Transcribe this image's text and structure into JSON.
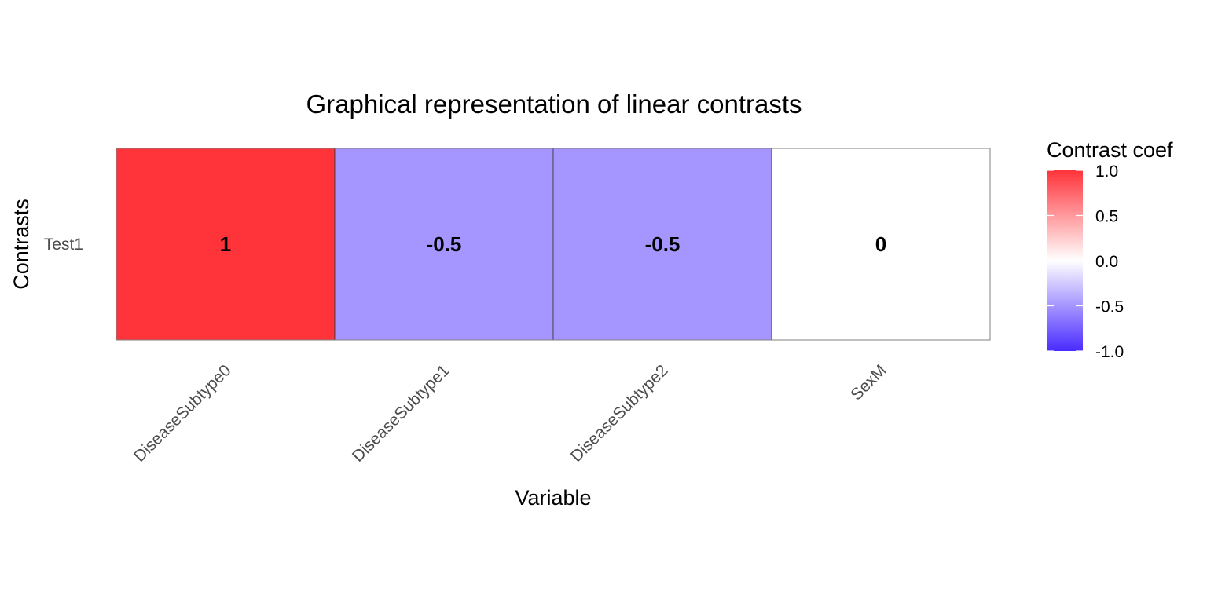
{
  "chart_data": {
    "type": "heatmap",
    "title": "Graphical representation of linear contrasts",
    "xlabel": "Variable",
    "ylabel": "Contrasts",
    "x": [
      "DiseaseSubtype0",
      "DiseaseSubtype1",
      "DiseaseSubtype2",
      "SexM"
    ],
    "y": [
      "Test1"
    ],
    "values": [
      [
        1,
        -0.5,
        -0.5,
        0
      ]
    ],
    "cell_labels": [
      [
        "1",
        "-0.5",
        "-0.5",
        "0"
      ]
    ],
    "legend": {
      "title": "Contrast coef",
      "position": "right",
      "range": [
        -1,
        1
      ],
      "ticks": [
        1.0,
        0.5,
        0.0,
        -0.5,
        -1.0
      ],
      "tick_labels": [
        "1.0",
        "0.5",
        "0.0",
        "-0.5",
        "-1.0"
      ]
    },
    "colors": {
      "high": "#ff333a",
      "mid": "#ffffff",
      "low": "#4a2bff"
    },
    "grid": false
  }
}
